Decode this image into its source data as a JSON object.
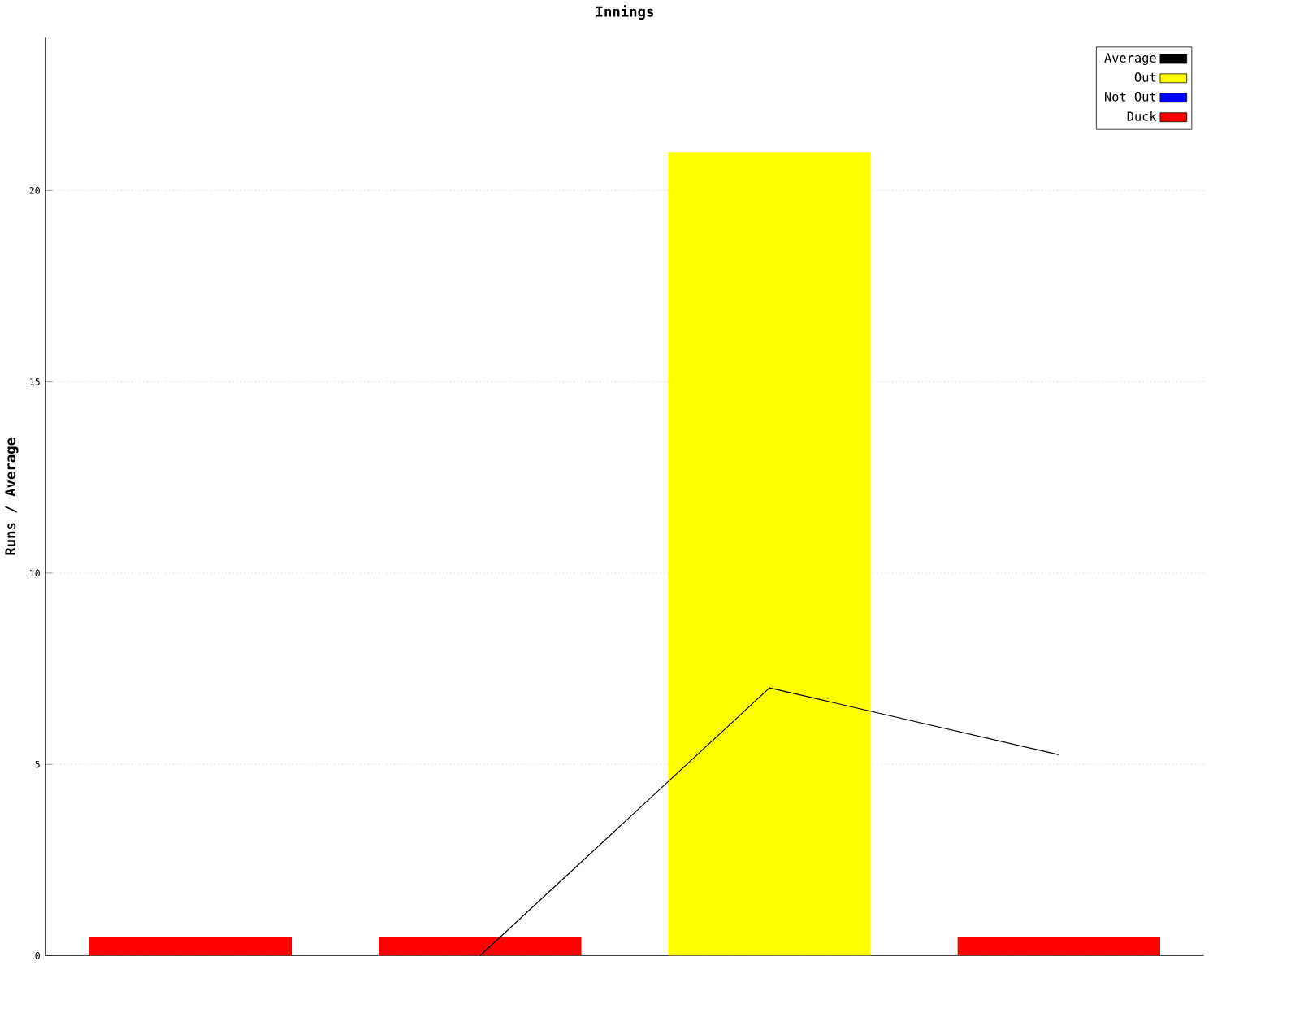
{
  "chart_data": {
    "type": "bar",
    "title": "Innings",
    "ylabel": "Runs / Average",
    "categories": [
      null,
      null,
      null,
      null
    ],
    "stacked": true,
    "series": [
      {
        "name": "Average",
        "type": "line",
        "color": "#000000",
        "values": [
          null,
          0,
          7,
          5.25
        ]
      },
      {
        "name": "Out",
        "color": "#ffff00",
        "values": [
          null,
          null,
          21,
          null
        ]
      },
      {
        "name": "Not Out",
        "color": "#0000ff",
        "values": [
          null,
          null,
          null,
          null
        ]
      },
      {
        "name": "Duck",
        "color": "#ff0000",
        "values": [
          0.5,
          0.5,
          null,
          0.5
        ]
      }
    ],
    "ylim": [
      0,
      24
    ],
    "yticks": [
      0,
      5,
      10,
      15,
      20
    ],
    "grid": "y",
    "legend": "top right",
    "marker": "none"
  }
}
